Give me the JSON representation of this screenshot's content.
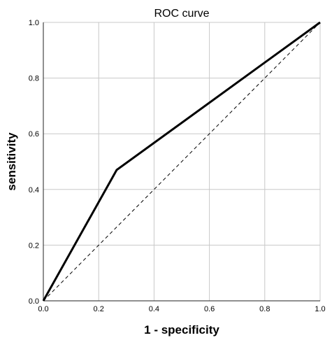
{
  "chart_data": {
    "type": "line",
    "title": "ROC curve",
    "xlabel": "1 - specificity",
    "ylabel": "sensitivity",
    "xlim": [
      0.0,
      1.0
    ],
    "ylim": [
      0.0,
      1.0
    ],
    "xticks": [
      "0.0",
      "0.2",
      "0.4",
      "0.6",
      "0.8",
      "1.0"
    ],
    "yticks": [
      "0.0",
      "0.2",
      "0.4",
      "0.6",
      "0.8",
      "1.0"
    ],
    "grid": true,
    "legend": "none",
    "series": [
      {
        "x": [
          0.0,
          0.265,
          1.0
        ],
        "y": [
          0.0,
          0.47,
          1.0
        ],
        "style": "solid",
        "color": "#000000"
      },
      {
        "x": [
          0.0,
          1.0
        ],
        "y": [
          0.0,
          1.0
        ],
        "style": "dashed",
        "color": "#000000"
      }
    ]
  }
}
